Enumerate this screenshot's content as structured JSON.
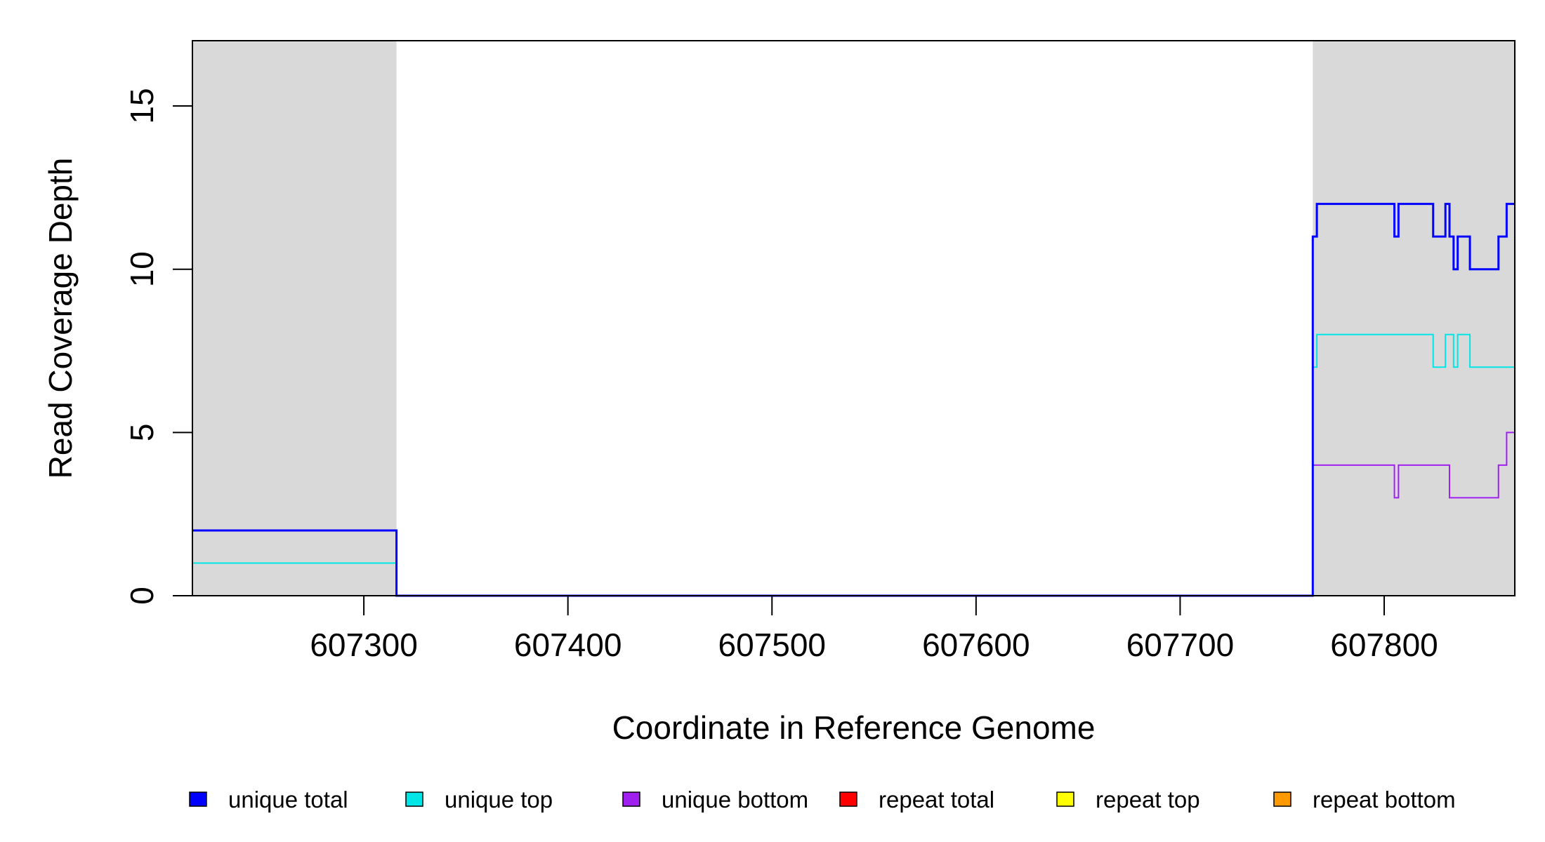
{
  "chart_data": {
    "type": "line",
    "title": "",
    "xlabel": "Coordinate in Reference Genome",
    "ylabel": "Read Coverage Depth",
    "xlim": [
      607216,
      607864
    ],
    "ylim": [
      0,
      17
    ],
    "x_ticks": [
      607300,
      607400,
      607500,
      607600,
      607700,
      607800
    ],
    "x_tick_labels": [
      "607300",
      "607400",
      "607500",
      "607600",
      "607700",
      "607800"
    ],
    "y_ticks": [
      0,
      5,
      10,
      15
    ],
    "y_tick_labels": [
      "0",
      "5",
      "10",
      "15"
    ],
    "grid": false,
    "shaded_regions": [
      {
        "x0": 607216,
        "x1": 607316,
        "color": "#d9d9d9"
      },
      {
        "x0": 607765,
        "x1": 607864,
        "color": "#d9d9d9"
      }
    ],
    "legend_position": "bottom",
    "series": [
      {
        "name": "unique total",
        "color": "#0000ff",
        "width": 3,
        "step_points": [
          [
            607216,
            2
          ],
          [
            607316,
            0
          ],
          [
            607765,
            11
          ],
          [
            607767,
            12
          ],
          [
            607805,
            11
          ],
          [
            607807,
            12
          ],
          [
            607824,
            11
          ],
          [
            607830,
            12
          ],
          [
            607832,
            11
          ],
          [
            607834,
            10
          ],
          [
            607836,
            11
          ],
          [
            607842,
            10
          ],
          [
            607856,
            11
          ],
          [
            607860,
            12
          ],
          [
            607864,
            12
          ]
        ]
      },
      {
        "name": "unique top",
        "color": "#00e5e5",
        "width": 2,
        "step_points": [
          [
            607216,
            1
          ],
          [
            607316,
            0
          ],
          [
            607765,
            7
          ],
          [
            607767,
            8
          ],
          [
            607824,
            7
          ],
          [
            607830,
            8
          ],
          [
            607834,
            7
          ],
          [
            607836,
            8
          ],
          [
            607842,
            7
          ],
          [
            607864,
            7
          ]
        ]
      },
      {
        "name": "unique bottom",
        "color": "#a020f0",
        "width": 2,
        "step_points": [
          [
            607216,
            1
          ],
          [
            607316,
            0
          ],
          [
            607765,
            4
          ],
          [
            607805,
            3
          ],
          [
            607807,
            4
          ],
          [
            607832,
            3
          ],
          [
            607856,
            4
          ],
          [
            607860,
            5
          ],
          [
            607864,
            5
          ]
        ]
      },
      {
        "name": "repeat total",
        "color": "#ff0000",
        "width": 2,
        "step_points": [
          [
            607216,
            0
          ],
          [
            607864,
            0
          ]
        ]
      },
      {
        "name": "repeat top",
        "color": "#ffff00",
        "width": 2,
        "step_points": [
          [
            607216,
            0
          ],
          [
            607864,
            0
          ]
        ]
      },
      {
        "name": "repeat bottom",
        "color": "#ff9900",
        "width": 2,
        "step_points": [
          [
            607216,
            0
          ],
          [
            607864,
            0
          ]
        ]
      }
    ]
  }
}
